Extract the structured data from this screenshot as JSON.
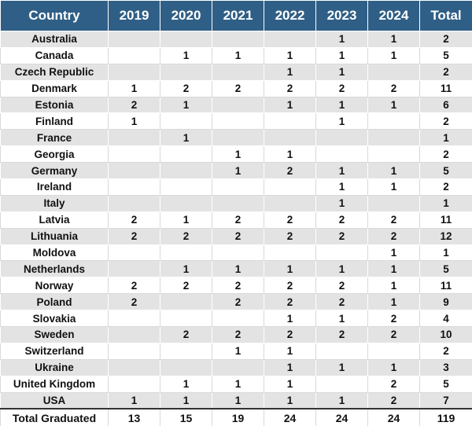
{
  "headers": [
    "Country",
    "2019",
    "2020",
    "2021",
    "2022",
    "2023",
    "2024",
    "Total"
  ],
  "rows": [
    [
      "Australia",
      "",
      "",
      "",
      "",
      "1",
      "1",
      "2"
    ],
    [
      "Canada",
      "",
      "1",
      "1",
      "1",
      "1",
      "1",
      "5"
    ],
    [
      "Czech Republic",
      "",
      "",
      "",
      "1",
      "1",
      "",
      "2"
    ],
    [
      "Denmark",
      "1",
      "2",
      "2",
      "2",
      "2",
      "2",
      "11"
    ],
    [
      "Estonia",
      "2",
      "1",
      "",
      "1",
      "1",
      "1",
      "6"
    ],
    [
      "Finland",
      "1",
      "",
      "",
      "",
      "1",
      "",
      "2"
    ],
    [
      "France",
      "",
      "1",
      "",
      "",
      "",
      "",
      "1"
    ],
    [
      "Georgia",
      "",
      "",
      "1",
      "1",
      "",
      "",
      "2"
    ],
    [
      "Germany",
      "",
      "",
      "1",
      "2",
      "1",
      "1",
      "5"
    ],
    [
      "Ireland",
      "",
      "",
      "",
      "",
      "1",
      "1",
      "2"
    ],
    [
      "Italy",
      "",
      "",
      "",
      "",
      "1",
      "",
      "1"
    ],
    [
      "Latvia",
      "2",
      "1",
      "2",
      "2",
      "2",
      "2",
      "11"
    ],
    [
      "Lithuania",
      "2",
      "2",
      "2",
      "2",
      "2",
      "2",
      "12"
    ],
    [
      "Moldova",
      "",
      "",
      "",
      "",
      "",
      "1",
      "1"
    ],
    [
      "Netherlands",
      "",
      "1",
      "1",
      "1",
      "1",
      "1",
      "5"
    ],
    [
      "Norway",
      "2",
      "2",
      "2",
      "2",
      "2",
      "1",
      "11"
    ],
    [
      "Poland",
      "2",
      "",
      "2",
      "2",
      "2",
      "1",
      "9"
    ],
    [
      "Slovakia",
      "",
      "",
      "",
      "1",
      "1",
      "2",
      "4"
    ],
    [
      "Sweden",
      "",
      "2",
      "2",
      "2",
      "2",
      "2",
      "10"
    ],
    [
      "Switzerland",
      "",
      "",
      "1",
      "1",
      "",
      "",
      "2"
    ],
    [
      "Ukraine",
      "",
      "",
      "",
      "1",
      "1",
      "1",
      "3"
    ],
    [
      "United Kingdom",
      "",
      "1",
      "1",
      "1",
      "",
      "2",
      "5"
    ],
    [
      "USA",
      "1",
      "1",
      "1",
      "1",
      "1",
      "2",
      "7"
    ]
  ],
  "footer": [
    "Total Graduated",
    "13",
    "15",
    "19",
    "24",
    "24",
    "24",
    "119"
  ],
  "colors": {
    "header_bg": "#2f5f86",
    "header_text": "#ffffff",
    "stripe": "#e3e3e3"
  }
}
